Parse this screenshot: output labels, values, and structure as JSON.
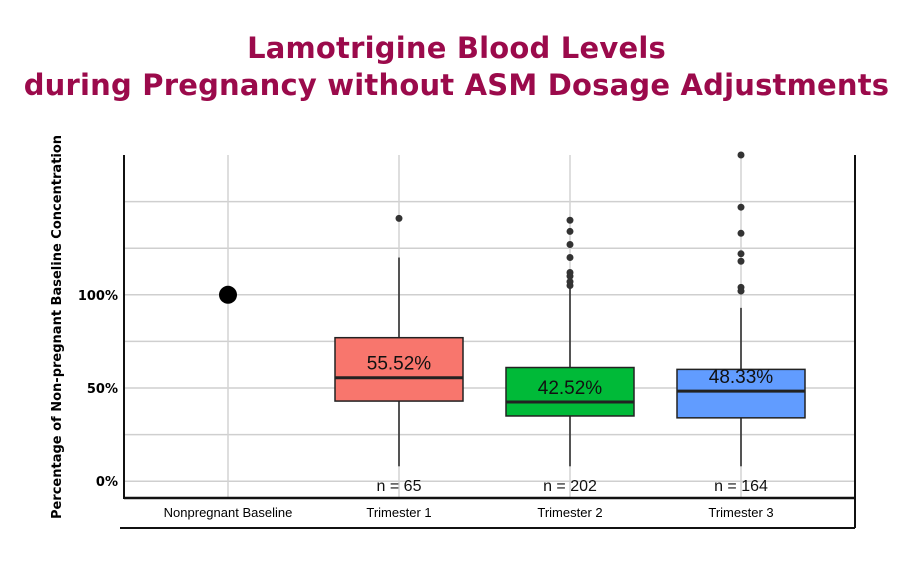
{
  "title_line1": "Lamotrigine Blood Levels",
  "title_line2": "during Pregnancy without ASM Dosage Adjustments",
  "chart_data": {
    "type": "box",
    "title": "Lamotrigine Blood Levels during Pregnancy without ASM Dosage Adjustments",
    "ylabel": "Percentage of Non-pregnant Baseline Concentration",
    "xlabel": "",
    "ylim": [
      -9,
      175
    ],
    "yticks": [
      {
        "value": 0,
        "label": "0%"
      },
      {
        "value": 50,
        "label": "50%"
      },
      {
        "value": 100,
        "label": "100%"
      }
    ],
    "grid": true,
    "categories": [
      "Nonpregnant Baseline",
      "Trimester 1",
      "Trimester 2",
      "Trimester 3"
    ],
    "baseline_point": {
      "category": "Nonpregnant Baseline",
      "value": 100,
      "color": "#000000"
    },
    "boxes": [
      {
        "category": "Trimester 1",
        "color": "#f8766d",
        "median": 55.52,
        "median_label": "55.52%",
        "q1": 43,
        "q3": 77,
        "whisker_low": 8,
        "whisker_high": 120,
        "outliers": [
          141
        ],
        "n_label": "n = 65"
      },
      {
        "category": "Trimester 2",
        "color": "#00ba38",
        "median": 42.52,
        "median_label": "42.52%",
        "q1": 35,
        "q3": 61,
        "whisker_low": 8,
        "whisker_high": 104,
        "outliers": [
          140,
          134,
          127,
          120,
          112,
          110,
          107,
          105
        ],
        "n_label": "n = 202"
      },
      {
        "category": "Trimester 3",
        "color": "#619cff",
        "median": 48.33,
        "median_label": "48.33%",
        "q1": 34,
        "q3": 60,
        "whisker_low": 8,
        "whisker_high": 93,
        "outliers": [
          175,
          147,
          133,
          122,
          118,
          104,
          102
        ],
        "n_label": "n = 164"
      }
    ]
  }
}
